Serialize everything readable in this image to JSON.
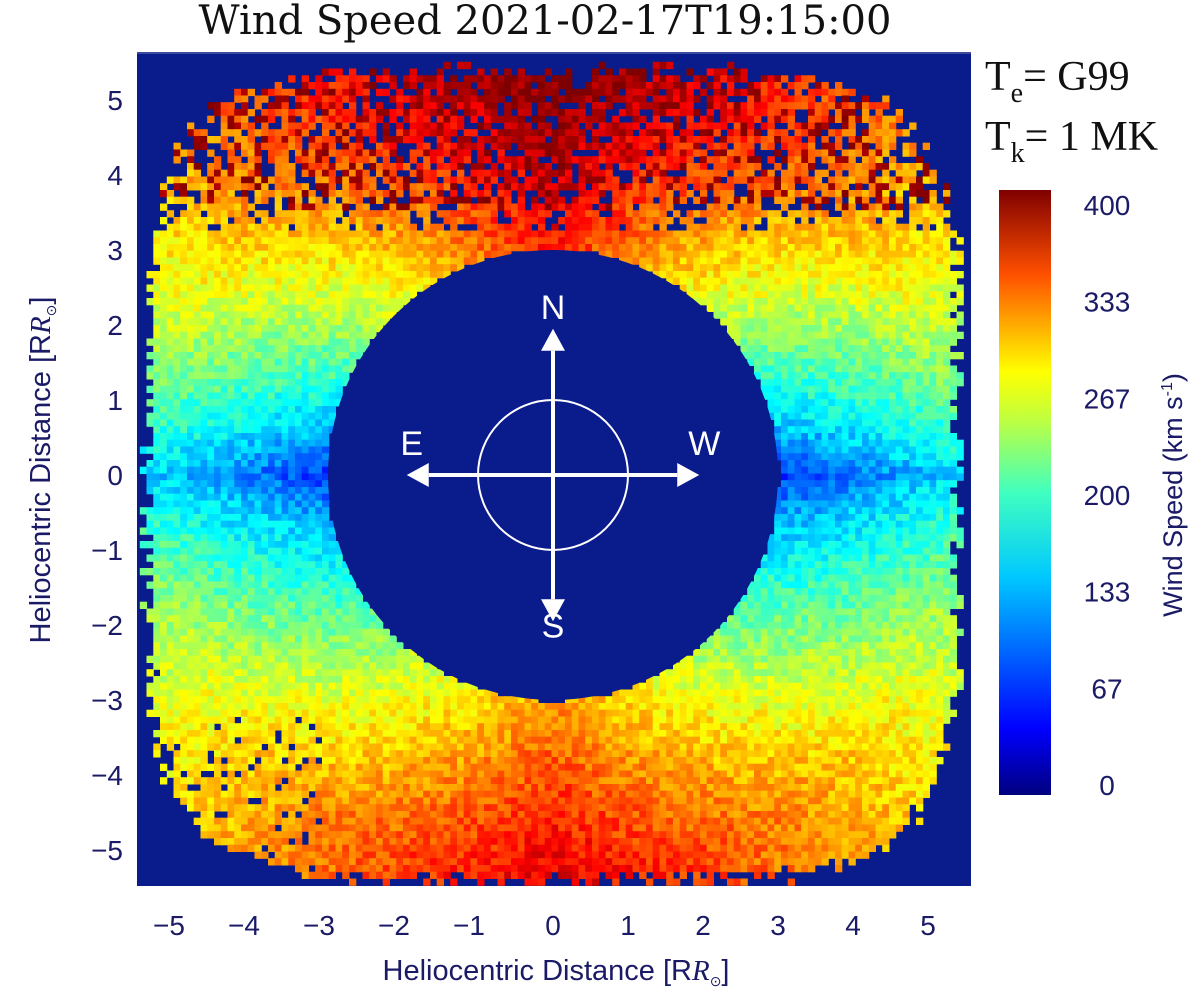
{
  "chart_data": {
    "type": "heatmap",
    "title": "Wind Speed 2021-02-17T19:15:00",
    "xlabel": "Heliocentric Distance [R",
    "ylabel": "Heliocentric Distance [R",
    "unit_symbol": "⊙",
    "unit_close": "]",
    "xlim": [
      -5.6,
      5.6
    ],
    "ylim": [
      -5.6,
      5.6
    ],
    "xticks": [
      -5,
      -4,
      -3,
      -2,
      -1,
      0,
      1,
      2,
      3,
      4,
      5
    ],
    "yticks": [
      -5,
      -4,
      -3,
      -2,
      -1,
      0,
      1,
      2,
      3,
      4,
      5
    ],
    "occulter_radius": 3.0,
    "sun_radius": 1.0,
    "params": {
      "te_label": "T",
      "te_sub": "e",
      "te_value": "= G99",
      "tk_label": "T",
      "tk_sub": "k",
      "tk_value": "= 1 MK"
    },
    "colorbar": {
      "label": "Wind Speed (km s",
      "label_sup": "-1",
      "label_close": ")",
      "min": 0,
      "max": 400,
      "ticks": [
        "400",
        "333",
        "267",
        "200",
        "133",
        "67",
        "0"
      ]
    },
    "compass": {
      "north": "N",
      "south": "S",
      "east": "E",
      "west": "W"
    },
    "colors": {
      "background": "#0a1b8c",
      "colormap": [
        "#00007f",
        "#0000ff",
        "#007fff",
        "#00ffff",
        "#7fff7f",
        "#ffff00",
        "#ff7f00",
        "#ff0000",
        "#7f0000"
      ]
    },
    "approx_speed_profile": {
      "equatorial_streamer_kms": 90,
      "mid_latitude_kms": 200,
      "north_polar_outer_kms": 370,
      "south_polar_outer_kms": 320
    }
  }
}
